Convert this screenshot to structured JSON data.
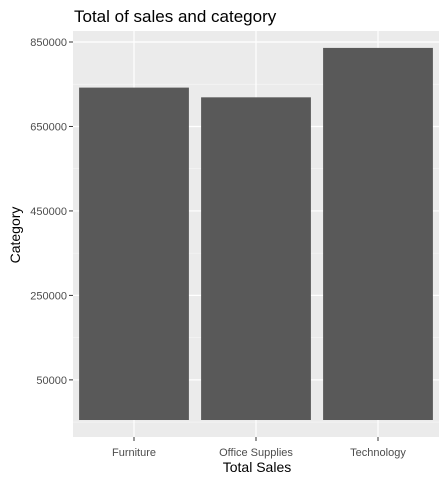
{
  "chart_data": {
    "type": "bar",
    "title": "Total of sales and category",
    "xlabel": "Total Sales",
    "ylabel": "Category",
    "categories": [
      "Furniture",
      "Office Supplies",
      "Technology"
    ],
    "values": [
      742000,
      719000,
      836000
    ],
    "ylim": [
      0,
      900000
    ],
    "yticks": [
      50000,
      250000,
      450000,
      650000,
      850000
    ],
    "ytick_labels": [
      "50000",
      "250000",
      "450000",
      "650000",
      "850000"
    ],
    "grid": true,
    "colors": {
      "bar": "#595959",
      "panel": "#ebebeb",
      "grid_major": "#ffffff"
    }
  }
}
